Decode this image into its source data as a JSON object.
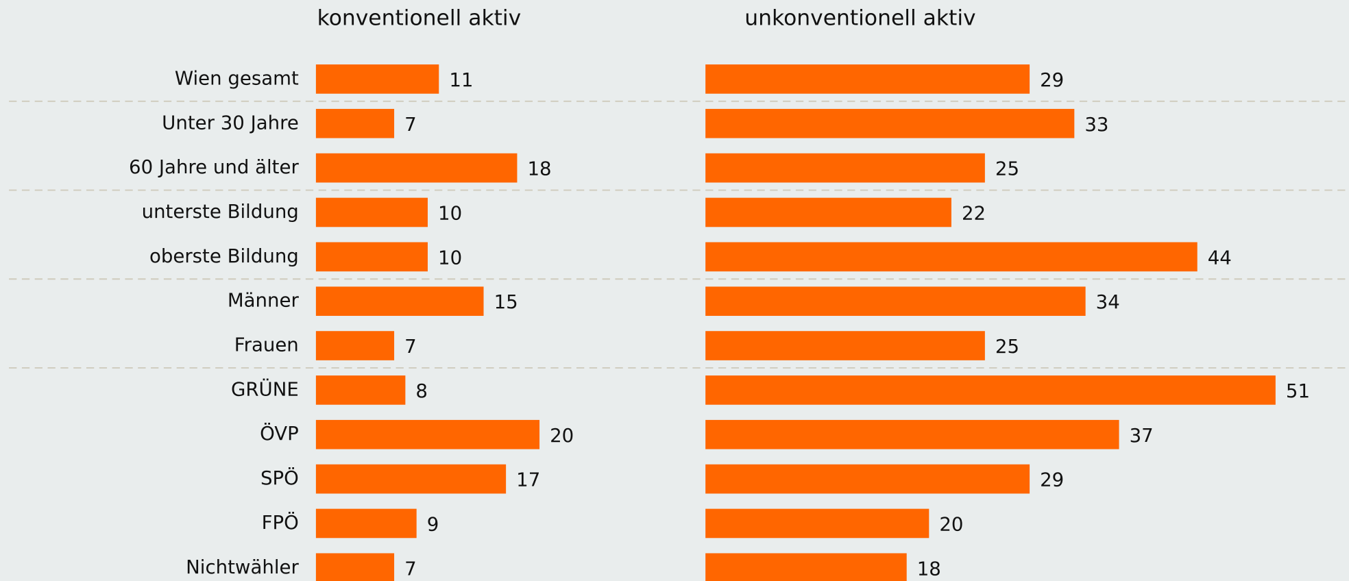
{
  "chart_data": {
    "type": "bar",
    "orientation": "horizontal",
    "categories": [
      "Wien gesamt",
      "Unter 30 Jahre",
      "60 Jahre und älter",
      "unterste Bildung",
      "oberste Bildung",
      "Männer",
      "Frauen",
      "GRÜNE",
      "ÖVP",
      "SPÖ",
      "FPÖ",
      "Nichtwähler"
    ],
    "series": [
      {
        "name": "konventionell aktiv",
        "color": "#ff6600",
        "values": [
          11,
          7,
          18,
          10,
          10,
          15,
          7,
          8,
          20,
          17,
          9,
          7
        ]
      },
      {
        "name": "unkonventionell aktiv",
        "color": "#ff6600",
        "values": [
          29,
          33,
          25,
          22,
          44,
          34,
          25,
          51,
          37,
          29,
          20,
          18
        ]
      }
    ]
  }
}
